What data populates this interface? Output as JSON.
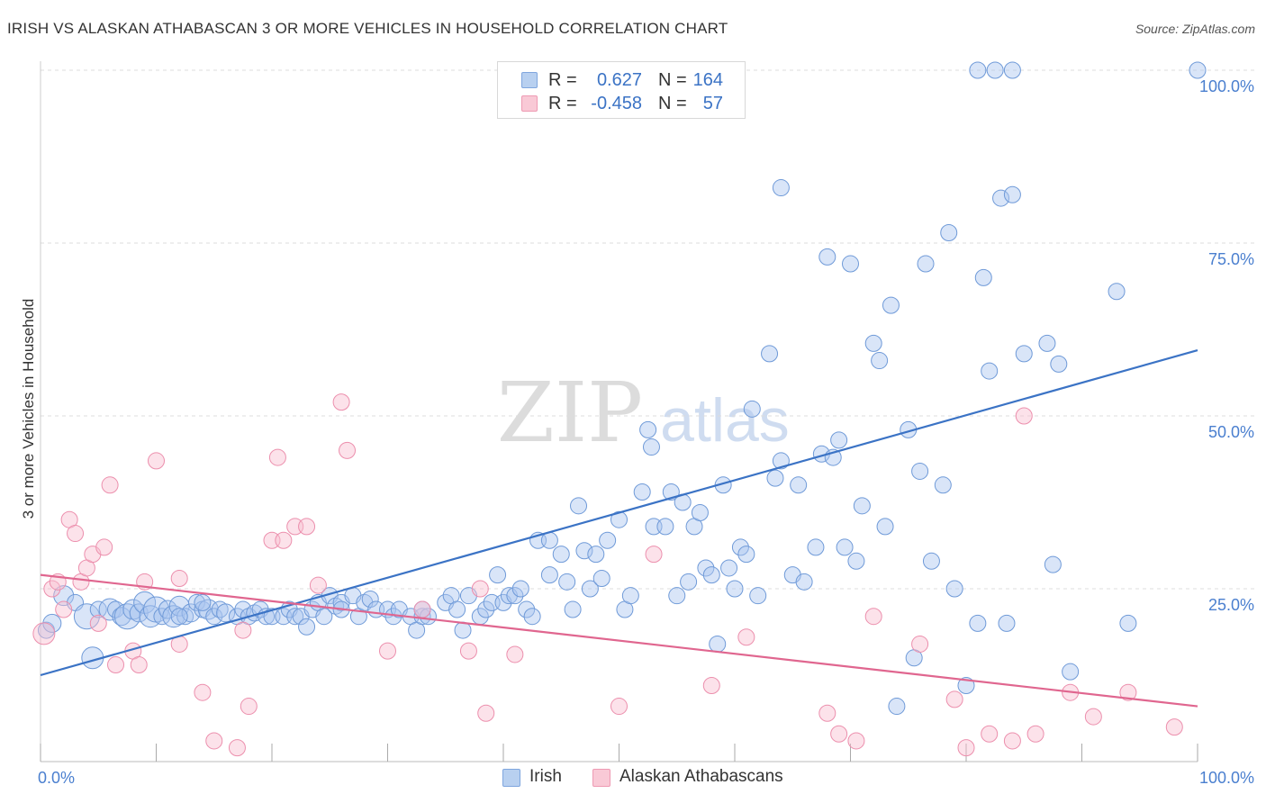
{
  "title": "IRISH VS ALASKAN ATHABASCAN 3 OR MORE VEHICLES IN HOUSEHOLD CORRELATION CHART",
  "source": "Source: ZipAtlas.com",
  "watermark": {
    "zip": "ZIP",
    "atlas": "atlas"
  },
  "legend": {
    "r_label": "R =",
    "n_label": "N =",
    "rows": [
      {
        "r": "0.627",
        "n": "164",
        "fill": "#b8d0f0",
        "stroke": "#7fa6de"
      },
      {
        "r": "-0.458",
        "n": "57",
        "fill": "#f9c9d6",
        "stroke": "#ee9ab3"
      }
    ]
  },
  "bottom_legend": [
    {
      "label": "Irish",
      "fill": "#b8d0f0",
      "stroke": "#7fa6de"
    },
    {
      "label": "Alaskan Athabascans",
      "fill": "#f9c9d6",
      "stroke": "#ee9ab3"
    }
  ],
  "chart_data": {
    "type": "scatter",
    "title": "IRISH VS ALASKAN ATHABASCAN 3 OR MORE VEHICLES IN HOUSEHOLD CORRELATION CHART",
    "xlabel": "",
    "ylabel": "3 or more Vehicles in Household",
    "xlim": [
      0,
      100
    ],
    "ylim": [
      0,
      100
    ],
    "x_tick_labels": [
      "0.0%",
      "100.0%"
    ],
    "y_tick_labels": [
      "25.0%",
      "50.0%",
      "75.0%",
      "100.0%"
    ],
    "y_ticks": [
      25,
      50,
      75,
      100
    ],
    "grid": true,
    "legend_position": "top-center",
    "colors": {
      "irish": "#3b73c5",
      "athabascan": "#e0668f",
      "tick_label": "#4a7fcf"
    },
    "series": [
      {
        "name": "Irish",
        "trend": {
          "x": [
            0,
            100
          ],
          "y": [
            12.5,
            59.5
          ]
        },
        "points": [
          [
            0.5,
            19,
            9
          ],
          [
            1,
            20,
            10
          ],
          [
            2,
            24,
            11
          ],
          [
            3,
            23,
            9
          ],
          [
            4,
            21,
            14
          ],
          [
            4.5,
            15,
            12
          ],
          [
            5,
            22,
            9
          ],
          [
            6,
            22,
            12
          ],
          [
            6.5,
            22,
            9
          ],
          [
            7,
            21,
            10
          ],
          [
            7.5,
            21,
            14
          ],
          [
            8,
            22,
            11
          ],
          [
            8.5,
            21.5,
            10
          ],
          [
            9,
            23,
            12
          ],
          [
            9.5,
            21,
            12
          ],
          [
            10,
            22,
            14
          ],
          [
            10.5,
            21,
            9
          ],
          [
            11,
            22,
            10
          ],
          [
            11.5,
            21,
            12
          ],
          [
            12,
            22.5,
            11
          ],
          [
            12.5,
            21,
            9
          ],
          [
            13,
            21.5,
            10
          ],
          [
            13.5,
            23,
            9
          ],
          [
            14,
            22,
            9
          ],
          [
            14.5,
            22,
            11
          ],
          [
            15,
            21,
            9
          ],
          [
            15.5,
            22,
            9
          ],
          [
            16,
            21.5,
            10
          ],
          [
            17,
            21,
            9
          ],
          [
            17.5,
            22,
            9
          ],
          [
            18,
            21,
            9
          ],
          [
            18.5,
            21.5,
            9
          ],
          [
            19,
            22,
            9
          ],
          [
            19.5,
            21,
            9
          ],
          [
            20,
            21,
            9
          ],
          [
            21,
            21,
            9
          ],
          [
            21.5,
            22,
            9
          ],
          [
            22,
            21,
            9
          ],
          [
            22.5,
            21,
            9
          ],
          [
            23,
            19.5,
            9
          ],
          [
            23.5,
            22,
            9
          ],
          [
            24,
            23,
            9
          ],
          [
            24.5,
            21,
            9
          ],
          [
            25,
            24,
            9
          ],
          [
            25.5,
            22.5,
            9
          ],
          [
            26,
            23,
            9
          ],
          [
            27,
            24,
            9
          ],
          [
            27.5,
            21,
            9
          ],
          [
            28,
            23,
            9
          ],
          [
            28.5,
            23.5,
            9
          ],
          [
            29,
            22,
            9
          ],
          [
            30,
            22,
            9
          ],
          [
            30.5,
            21,
            9
          ],
          [
            31,
            22,
            9
          ],
          [
            32,
            21,
            9
          ],
          [
            32.5,
            19,
            9
          ],
          [
            33,
            21,
            9
          ],
          [
            33.5,
            21,
            9
          ],
          [
            35,
            23,
            9
          ],
          [
            35.5,
            24,
            9
          ],
          [
            36,
            22,
            9
          ],
          [
            36.5,
            19,
            9
          ],
          [
            37,
            24,
            9
          ],
          [
            38,
            21,
            9
          ],
          [
            38.5,
            22,
            9
          ],
          [
            39,
            23,
            9
          ],
          [
            39.5,
            27,
            9
          ],
          [
            40,
            23,
            9
          ],
          [
            40.5,
            24,
            9
          ],
          [
            41,
            24,
            9
          ],
          [
            41.5,
            25,
            9
          ],
          [
            42,
            22,
            9
          ],
          [
            42.5,
            21,
            9
          ],
          [
            43,
            32,
            9
          ],
          [
            44,
            32,
            9
          ],
          [
            45,
            30,
            9
          ],
          [
            45.5,
            26,
            9
          ],
          [
            46,
            22,
            9
          ],
          [
            46.5,
            37,
            9
          ],
          [
            47,
            30.5,
            9
          ],
          [
            47.5,
            25,
            9
          ],
          [
            48,
            30,
            9
          ],
          [
            48.5,
            26.5,
            9
          ],
          [
            49,
            32,
            9
          ],
          [
            50,
            35,
            9
          ],
          [
            50.5,
            22,
            9
          ],
          [
            51,
            24,
            9
          ],
          [
            52,
            39,
            9
          ],
          [
            52.5,
            48,
            9
          ],
          [
            52.8,
            45.5,
            9
          ],
          [
            53,
            34,
            9
          ],
          [
            54,
            34,
            9
          ],
          [
            54.5,
            39,
            9
          ],
          [
            55,
            24,
            9
          ],
          [
            55.5,
            37.5,
            9
          ],
          [
            56,
            26,
            9
          ],
          [
            56.5,
            34,
            9
          ],
          [
            57,
            36,
            9
          ],
          [
            57.5,
            28,
            9
          ],
          [
            58,
            27,
            9
          ],
          [
            58.5,
            17,
            9
          ],
          [
            59,
            40,
            9
          ],
          [
            59.5,
            28,
            9
          ],
          [
            60,
            25,
            9
          ],
          [
            60.5,
            31,
            9
          ],
          [
            61,
            30,
            9
          ],
          [
            61.5,
            51,
            9
          ],
          [
            62,
            24,
            9
          ],
          [
            63,
            59,
            9
          ],
          [
            63.5,
            41,
            9
          ],
          [
            64,
            83,
            9
          ],
          [
            64,
            43.5,
            9
          ],
          [
            65,
            27,
            9
          ],
          [
            65.5,
            40,
            9
          ],
          [
            66,
            26,
            9
          ],
          [
            67,
            31,
            9
          ],
          [
            67.5,
            44.5,
            9
          ],
          [
            68,
            73,
            9
          ],
          [
            68.5,
            44,
            9
          ],
          [
            69,
            46.5,
            9
          ],
          [
            69.5,
            31,
            9
          ],
          [
            70,
            72,
            9
          ],
          [
            70.5,
            29,
            9
          ],
          [
            71,
            37,
            9
          ],
          [
            72,
            60.5,
            9
          ],
          [
            72.5,
            58,
            9
          ],
          [
            73,
            34,
            9
          ],
          [
            73.5,
            66,
            9
          ],
          [
            74,
            8,
            9
          ],
          [
            75,
            48,
            9
          ],
          [
            75.5,
            15,
            9
          ],
          [
            76,
            42,
            9
          ],
          [
            76.5,
            72,
            9
          ],
          [
            77,
            29,
            9
          ],
          [
            78,
            40,
            9
          ],
          [
            78.5,
            76.5,
            9
          ],
          [
            79,
            25,
            9
          ],
          [
            80,
            11,
            9
          ],
          [
            81,
            20,
            9
          ],
          [
            81.5,
            70,
            9
          ],
          [
            82,
            56.5,
            9
          ],
          [
            83,
            81.5,
            9
          ],
          [
            83.5,
            20,
            9
          ],
          [
            84,
            82,
            9
          ],
          [
            85,
            59,
            9
          ],
          [
            87,
            60.5,
            9
          ],
          [
            87.5,
            28.5,
            9
          ],
          [
            88,
            57.5,
            9
          ],
          [
            89,
            13,
            9
          ],
          [
            81,
            100,
            9
          ],
          [
            82.5,
            100,
            9
          ],
          [
            84,
            100,
            9
          ],
          [
            93,
            68,
            9
          ],
          [
            94,
            20,
            9
          ],
          [
            100,
            100,
            9
          ],
          [
            12,
            21,
            9
          ],
          [
            14,
            23,
            9
          ],
          [
            26,
            22,
            9
          ],
          [
            33,
            22,
            9
          ],
          [
            44,
            27,
            9
          ]
        ]
      },
      {
        "name": "Alaskan Athabascans",
        "trend": {
          "x": [
            0,
            100
          ],
          "y": [
            27,
            8
          ]
        },
        "points": [
          [
            0.3,
            18.5,
            12
          ],
          [
            1,
            25,
            9
          ],
          [
            1.5,
            26,
            9
          ],
          [
            2,
            22,
            9
          ],
          [
            2.5,
            35,
            9
          ],
          [
            3,
            33,
            9
          ],
          [
            3.5,
            26,
            9
          ],
          [
            4,
            28,
            9
          ],
          [
            4.5,
            30,
            9
          ],
          [
            5,
            20,
            9
          ],
          [
            5.5,
            31,
            9
          ],
          [
            6,
            40,
            9
          ],
          [
            6.5,
            14,
            9
          ],
          [
            8,
            16,
            9
          ],
          [
            8.5,
            14,
            9
          ],
          [
            9,
            26,
            9
          ],
          [
            10,
            43.5,
            9
          ],
          [
            12,
            26.5,
            9
          ],
          [
            12,
            17,
            9
          ],
          [
            14,
            10,
            9
          ],
          [
            15,
            3,
            9
          ],
          [
            17,
            2,
            9
          ],
          [
            17.5,
            19,
            9
          ],
          [
            18,
            8,
            9
          ],
          [
            20,
            32,
            9
          ],
          [
            20.5,
            44,
            9
          ],
          [
            21,
            32,
            9
          ],
          [
            22,
            34,
            9
          ],
          [
            23,
            34,
            9
          ],
          [
            24,
            25.5,
            9
          ],
          [
            26,
            52,
            9
          ],
          [
            26.5,
            45,
            9
          ],
          [
            30,
            16,
            9
          ],
          [
            33,
            22,
            9
          ],
          [
            37,
            16,
            9
          ],
          [
            38,
            25,
            9
          ],
          [
            38.5,
            7,
            9
          ],
          [
            41,
            15.5,
            9
          ],
          [
            50,
            8,
            9
          ],
          [
            53,
            30,
            9
          ],
          [
            58,
            11,
            9
          ],
          [
            61,
            18,
            9
          ],
          [
            68,
            7,
            9
          ],
          [
            69,
            4,
            9
          ],
          [
            70.5,
            3,
            9
          ],
          [
            72,
            21,
            9
          ],
          [
            76,
            17,
            9
          ],
          [
            79,
            9,
            9
          ],
          [
            80,
            2,
            9
          ],
          [
            82,
            4,
            9
          ],
          [
            84,
            3,
            9
          ],
          [
            85,
            50,
            9
          ],
          [
            86,
            4,
            9
          ],
          [
            89,
            10,
            9
          ],
          [
            91,
            6.5,
            9
          ],
          [
            94,
            10,
            9
          ],
          [
            98,
            5,
            9
          ]
        ]
      }
    ]
  }
}
